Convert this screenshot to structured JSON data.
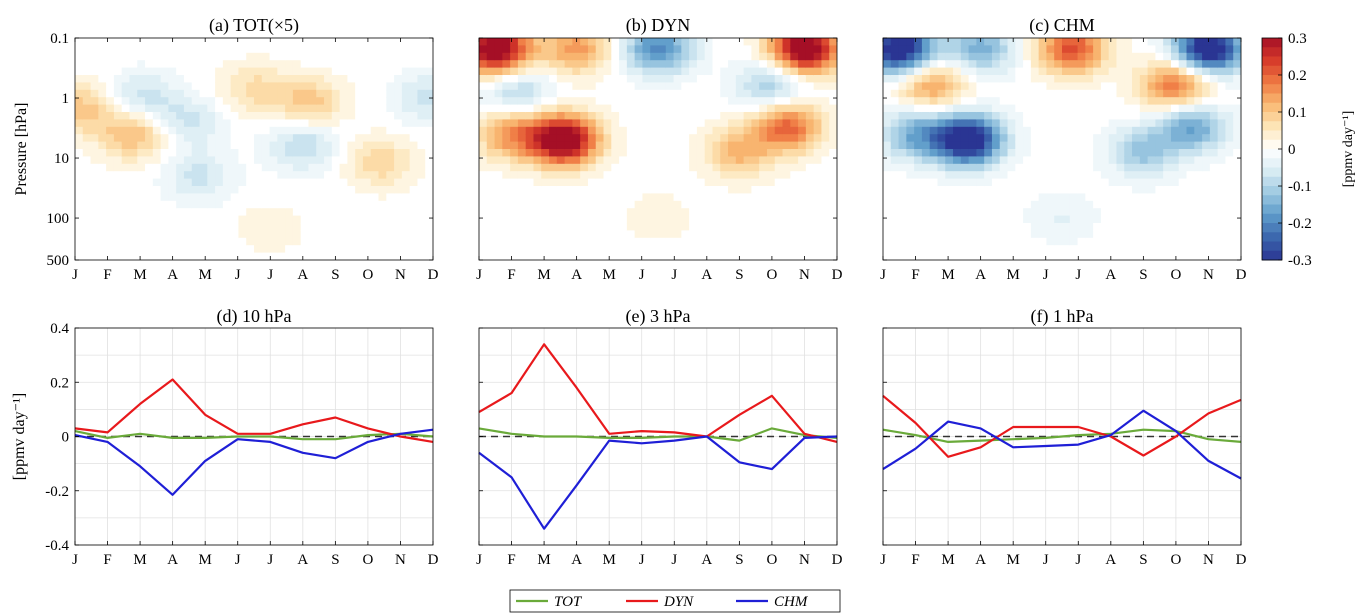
{
  "figure": {
    "months": [
      "J",
      "F",
      "M",
      "A",
      "M",
      "J",
      "J",
      "A",
      "S",
      "O",
      "N",
      "D"
    ],
    "contour_ylabel": "Pressure [hPa]",
    "line_ylabel": "[ppmv day⁻¹]",
    "colorbar": {
      "label": "[ppmv day⁻¹]",
      "ticks": [
        "0.3",
        "0.2",
        "0.1",
        "0",
        "-0.1",
        "-0.2",
        "-0.3"
      ],
      "min": -0.3,
      "max": 0.3,
      "colors": [
        "#2a3593",
        "#3b66ad",
        "#5d9bc9",
        "#9cc8e1",
        "#d9ecf3",
        "#ffffff",
        "#fde6b8",
        "#f9b973",
        "#ef7a43",
        "#d63a2a",
        "#a50f26"
      ]
    },
    "legend": [
      "TOT",
      "DYN",
      "CHM"
    ]
  },
  "chart_data": [
    {
      "type": "heatmap",
      "title": "(a) TOT(×5)",
      "ylabel": "Pressure [hPa]",
      "x": [
        "J",
        "F",
        "M",
        "A",
        "M",
        "J",
        "J",
        "A",
        "S",
        "O",
        "N",
        "D"
      ],
      "pressure_levels": [
        0.1,
        1,
        10,
        100,
        500
      ],
      "yticks": [
        "0.1",
        "1",
        "10",
        "100",
        "500"
      ],
      "colorscale": [
        -0.3,
        0.3
      ],
      "features": [
        {
          "month": 1.2,
          "p": 1.5,
          "value": 0.1
        },
        {
          "month": 2.8,
          "p": 4,
          "value": 0.12
        },
        {
          "month": 3.1,
          "p": 1,
          "value": -0.08
        },
        {
          "month": 4.5,
          "p": 2.5,
          "value": -0.07
        },
        {
          "month": 4.8,
          "p": 20,
          "value": -0.07
        },
        {
          "month": 6.5,
          "p": 0.7,
          "value": 0.07
        },
        {
          "month": 8.2,
          "p": 1.2,
          "value": 0.1
        },
        {
          "month": 8.0,
          "p": 6,
          "value": -0.09
        },
        {
          "month": 10.4,
          "p": 12,
          "value": 0.08
        },
        {
          "month": 11.8,
          "p": 1,
          "value": -0.07
        },
        {
          "month": 7.0,
          "p": 150,
          "value": 0.03
        }
      ]
    },
    {
      "type": "heatmap",
      "title": "(b) DYN",
      "x": [
        "J",
        "F",
        "M",
        "A",
        "M",
        "J",
        "J",
        "A",
        "S",
        "O",
        "N",
        "D"
      ],
      "pressure_levels": [
        0.1,
        1,
        10,
        100,
        500
      ],
      "colorscale": [
        -0.3,
        0.3
      ],
      "features": [
        {
          "month": 1.5,
          "p": 0.15,
          "value": 0.35
        },
        {
          "month": 4.0,
          "p": 0.15,
          "value": 0.15
        },
        {
          "month": 6.5,
          "p": 0.15,
          "value": -0.2
        },
        {
          "month": 11.0,
          "p": 0.15,
          "value": 0.35
        },
        {
          "month": 2.2,
          "p": 0.8,
          "value": -0.1
        },
        {
          "month": 2.0,
          "p": 4,
          "value": 0.15
        },
        {
          "month": 3.6,
          "p": 5,
          "value": 0.35
        },
        {
          "month": 10.0,
          "p": 0.6,
          "value": -0.12
        },
        {
          "month": 10.5,
          "p": 3,
          "value": 0.2
        },
        {
          "month": 9.0,
          "p": 8,
          "value": 0.12
        },
        {
          "month": 6.5,
          "p": 100,
          "value": 0.03
        }
      ]
    },
    {
      "type": "heatmap",
      "title": "(c) CHM",
      "x": [
        "J",
        "F",
        "M",
        "A",
        "M",
        "J",
        "J",
        "A",
        "S",
        "O",
        "N",
        "D"
      ],
      "pressure_levels": [
        0.1,
        1,
        10,
        100,
        500
      ],
      "colorscale": [
        -0.3,
        0.3
      ],
      "features": [
        {
          "month": 1.5,
          "p": 0.15,
          "value": -0.35
        },
        {
          "month": 4.0,
          "p": 0.15,
          "value": -0.15
        },
        {
          "month": 6.8,
          "p": 0.15,
          "value": 0.22
        },
        {
          "month": 11.0,
          "p": 0.15,
          "value": -0.35
        },
        {
          "month": 2.5,
          "p": 0.6,
          "value": 0.15
        },
        {
          "month": 2.0,
          "p": 4,
          "value": -0.15
        },
        {
          "month": 3.6,
          "p": 5,
          "value": -0.35
        },
        {
          "month": 10.0,
          "p": 0.6,
          "value": 0.2
        },
        {
          "month": 10.5,
          "p": 3,
          "value": -0.17
        },
        {
          "month": 9.0,
          "p": 8,
          "value": -0.12
        },
        {
          "month": 6.5,
          "p": 100,
          "value": -0.04
        }
      ]
    },
    {
      "type": "line",
      "title": "(d) 10 hPa",
      "ylabel": "[ppmv day⁻¹]",
      "x": [
        "J",
        "F",
        "M",
        "A",
        "M",
        "J",
        "J",
        "A",
        "S",
        "O",
        "N",
        "D"
      ],
      "ylim": [
        -0.4,
        0.4
      ],
      "yticks": [
        "0.4",
        "0.2",
        "0",
        "-0.2",
        "-0.4"
      ],
      "series": [
        {
          "name": "TOT",
          "color": "#6aaa3a",
          "values": [
            0.02,
            -0.005,
            0.01,
            -0.005,
            -0.005,
            0.0,
            0.0,
            -0.01,
            -0.01,
            0.005,
            0.01,
            0.0
          ]
        },
        {
          "name": "DYN",
          "color": "#e8191c",
          "values": [
            0.03,
            0.015,
            0.12,
            0.21,
            0.08,
            0.01,
            0.01,
            0.045,
            0.07,
            0.03,
            0.0,
            -0.02
          ]
        },
        {
          "name": "CHM",
          "color": "#1f1fd6",
          "values": [
            0.005,
            -0.02,
            -0.11,
            -0.215,
            -0.09,
            -0.01,
            -0.02,
            -0.06,
            -0.08,
            -0.02,
            0.01,
            0.025
          ]
        }
      ]
    },
    {
      "type": "line",
      "title": "(e) 3 hPa",
      "x": [
        "J",
        "F",
        "M",
        "A",
        "M",
        "J",
        "J",
        "A",
        "S",
        "O",
        "N",
        "D"
      ],
      "ylim": [
        -0.4,
        0.4
      ],
      "series": [
        {
          "name": "TOT",
          "color": "#6aaa3a",
          "values": [
            0.03,
            0.01,
            0.0,
            0.0,
            -0.005,
            -0.005,
            0.0,
            0.0,
            -0.015,
            0.03,
            0.005,
            -0.005
          ]
        },
        {
          "name": "DYN",
          "color": "#e8191c",
          "values": [
            0.09,
            0.16,
            0.34,
            0.18,
            0.01,
            0.02,
            0.015,
            0.0,
            0.08,
            0.15,
            0.01,
            -0.02
          ]
        },
        {
          "name": "CHM",
          "color": "#1f1fd6",
          "values": [
            -0.06,
            -0.15,
            -0.34,
            -0.18,
            -0.015,
            -0.025,
            -0.015,
            0.0,
            -0.095,
            -0.12,
            -0.005,
            0.0
          ]
        }
      ]
    },
    {
      "type": "line",
      "title": "(f) 1 hPa",
      "x": [
        "J",
        "F",
        "M",
        "A",
        "M",
        "J",
        "J",
        "A",
        "S",
        "O",
        "N",
        "D"
      ],
      "ylim": [
        -0.4,
        0.4
      ],
      "series": [
        {
          "name": "TOT",
          "color": "#6aaa3a",
          "values": [
            0.025,
            0.005,
            -0.02,
            -0.015,
            -0.01,
            -0.005,
            0.005,
            0.01,
            0.025,
            0.02,
            -0.01,
            -0.02
          ]
        },
        {
          "name": "DYN",
          "color": "#e8191c",
          "values": [
            0.15,
            0.05,
            -0.075,
            -0.04,
            0.035,
            0.035,
            0.035,
            0.0,
            -0.07,
            0.0,
            0.085,
            0.135
          ]
        },
        {
          "name": "CHM",
          "color": "#1f1fd6",
          "values": [
            -0.12,
            -0.045,
            0.055,
            0.03,
            -0.04,
            -0.035,
            -0.03,
            0.005,
            0.095,
            0.02,
            -0.09,
            -0.155
          ]
        }
      ]
    }
  ]
}
